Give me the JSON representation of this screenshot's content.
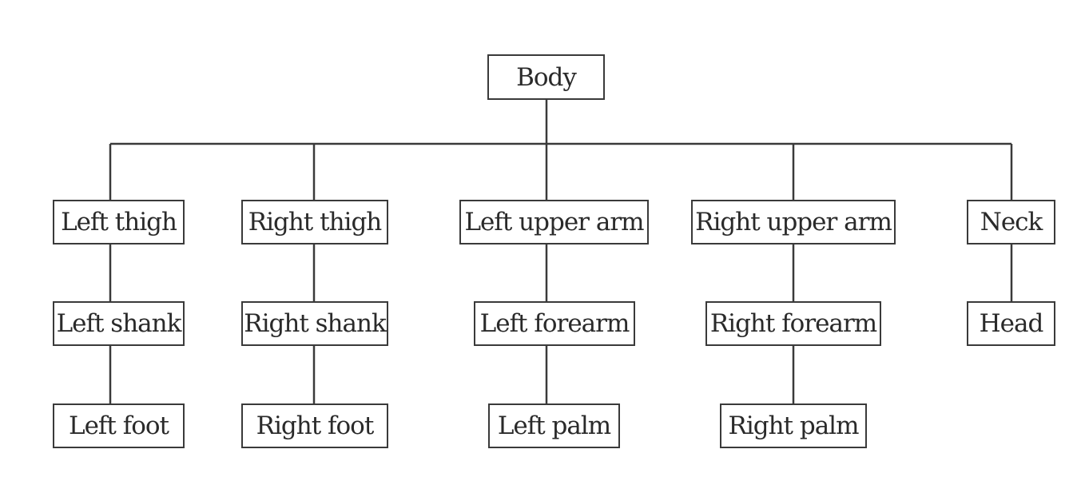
{
  "diagram": {
    "nodes": {
      "body": "Body",
      "left_thigh": "Left thigh",
      "right_thigh": "Right thigh",
      "left_upper_arm": "Left upper arm",
      "right_upper_arm": "Right upper arm",
      "neck": "Neck",
      "left_shank": "Left shank",
      "right_shank": "Right shank",
      "left_forearm": "Left forearm",
      "right_forearm": "Right forearm",
      "head": "Head",
      "left_foot": "Left foot",
      "right_foot": "Right foot",
      "left_palm": "Left palm",
      "right_palm": "Right palm"
    },
    "edges": [
      [
        "body",
        "left_thigh"
      ],
      [
        "body",
        "right_thigh"
      ],
      [
        "body",
        "left_upper_arm"
      ],
      [
        "body",
        "right_upper_arm"
      ],
      [
        "body",
        "neck"
      ],
      [
        "left_thigh",
        "left_shank"
      ],
      [
        "left_shank",
        "left_foot"
      ],
      [
        "right_thigh",
        "right_shank"
      ],
      [
        "right_shank",
        "right_foot"
      ],
      [
        "left_upper_arm",
        "left_forearm"
      ],
      [
        "left_forearm",
        "left_palm"
      ],
      [
        "right_upper_arm",
        "right_forearm"
      ],
      [
        "right_forearm",
        "right_palm"
      ],
      [
        "neck",
        "head"
      ]
    ]
  }
}
